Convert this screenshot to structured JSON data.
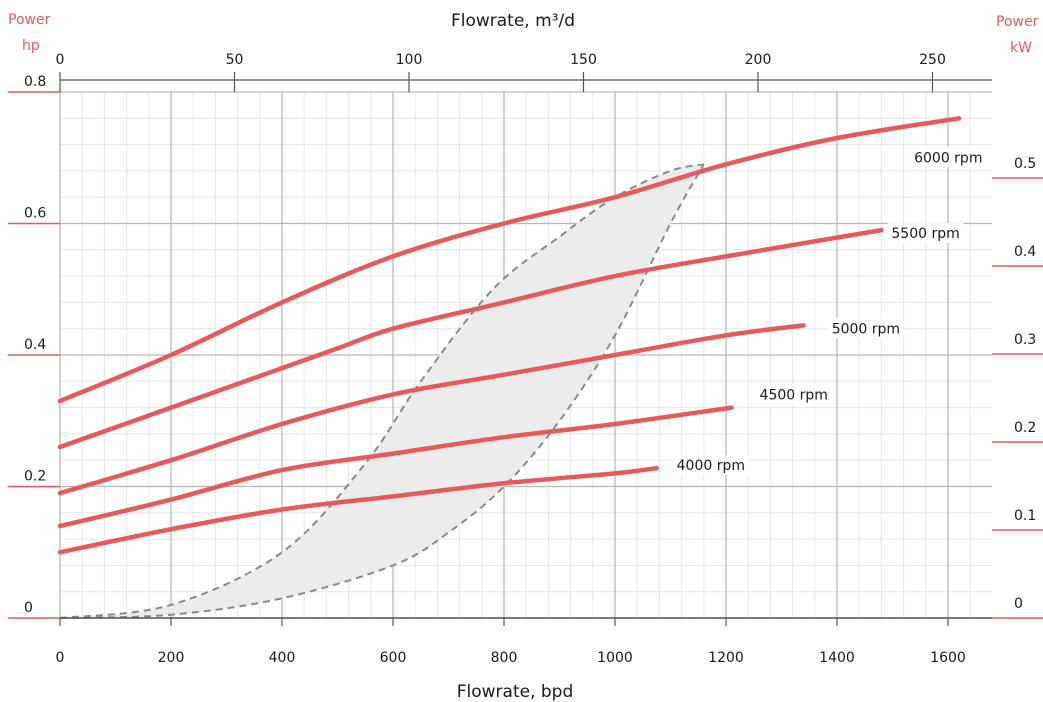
{
  "chart_data": {
    "type": "line",
    "title": "",
    "xlabel": "Flowrate, bpd",
    "x2label": "Flowrate, m³/d",
    "ylabel_left": [
      "Power",
      "hp"
    ],
    "ylabel_right": [
      "Power",
      "kW"
    ],
    "xlim": [
      0,
      1680
    ],
    "ylim": [
      0,
      0.8
    ],
    "x_ticks": [
      0,
      200,
      400,
      600,
      800,
      1000,
      1200,
      1400,
      1600
    ],
    "x2_ticks": [
      0,
      50,
      100,
      150,
      200,
      250
    ],
    "y_ticks": [
      0,
      0.2,
      0.4,
      0.6,
      0.8
    ],
    "y2_ticks": [
      0,
      0.1,
      0.2,
      0.3,
      0.4,
      0.5
    ],
    "grid": true,
    "series": [
      {
        "name": "6000 rpm",
        "x": [
          0,
          200,
          400,
          600,
          800,
          1000,
          1200,
          1400,
          1620
        ],
        "y": [
          0.33,
          0.4,
          0.48,
          0.55,
          0.6,
          0.64,
          0.69,
          0.73,
          0.76
        ]
      },
      {
        "name": "5500 rpm",
        "x": [
          0,
          200,
          400,
          500,
          600,
          800,
          1000,
          1200,
          1480
        ],
        "y": [
          0.26,
          0.32,
          0.38,
          0.41,
          0.44,
          0.48,
          0.52,
          0.55,
          0.59
        ]
      },
      {
        "name": "5000 rpm",
        "x": [
          0,
          200,
          400,
          600,
          800,
          1000,
          1200,
          1340
        ],
        "y": [
          0.19,
          0.24,
          0.295,
          0.34,
          0.37,
          0.4,
          0.43,
          0.445
        ]
      },
      {
        "name": "4500 rpm",
        "x": [
          0,
          200,
          400,
          600,
          800,
          1000,
          1210
        ],
        "y": [
          0.14,
          0.18,
          0.225,
          0.25,
          0.275,
          0.295,
          0.32
        ]
      },
      {
        "name": "4000 rpm",
        "x": [
          0,
          200,
          400,
          600,
          800,
          1000,
          1075
        ],
        "y": [
          0.1,
          0.135,
          0.165,
          0.185,
          0.205,
          0.22,
          0.228
        ]
      }
    ],
    "operating_range": {
      "lower_boundary": {
        "x": [
          0,
          200,
          400,
          550,
          650,
          780,
          900,
          1000,
          1100,
          1160
        ],
        "y": [
          0,
          0.02,
          0.1,
          0.235,
          0.36,
          0.5,
          0.58,
          0.64,
          0.68,
          0.69
        ]
      },
      "upper_boundary": {
        "x": [
          0,
          200,
          400,
          600,
          700,
          800,
          900,
          1000,
          1100,
          1160
        ],
        "y": [
          0,
          0.005,
          0.03,
          0.08,
          0.13,
          0.2,
          0.3,
          0.43,
          0.6,
          0.69
        ]
      },
      "top_boundary": {
        "x": [
          650,
          900,
          1160
        ],
        "y": [
          0.55,
          0.63,
          0.69
        ]
      }
    }
  },
  "colors": {
    "curve": "#e85a5a",
    "power_label": "#e85a5a",
    "grid_major": "#b9b9b9",
    "grid_minor": "#e6e6e6",
    "region_fill": "#ececec",
    "boundary": "#8a8a8a",
    "text": "#1a1a1a"
  }
}
